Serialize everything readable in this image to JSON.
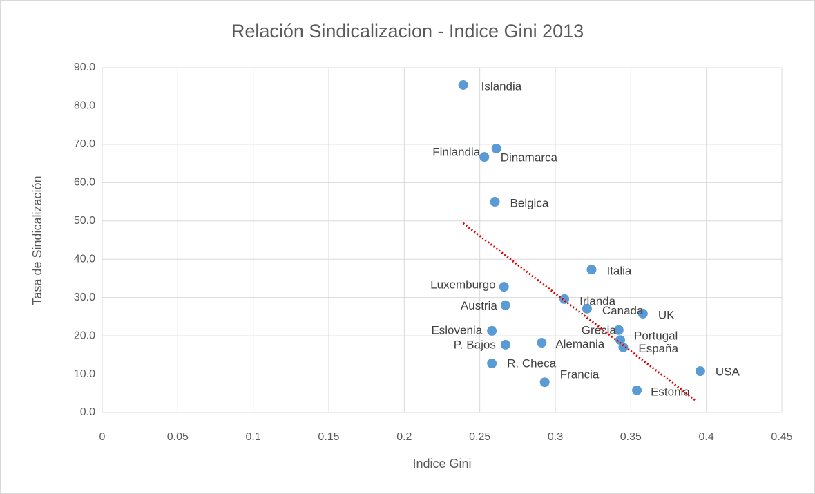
{
  "chart_data": {
    "type": "scatter",
    "title": "Relación Sindicalizacion - Indice Gini 2013",
    "x_label": "Indice Gini",
    "y_label": "Tasa de Sindicalización",
    "xlim": [
      0,
      0.45
    ],
    "xticks": [
      0,
      0.05,
      0.1,
      0.15,
      0.2,
      0.25,
      0.3,
      0.35,
      0.4,
      0.45
    ],
    "ylim": [
      0,
      90
    ],
    "yticks": [
      {
        "value": 0,
        "label": "0.0"
      },
      {
        "value": 10,
        "label": "10.0"
      },
      {
        "value": 20,
        "label": "20.0"
      },
      {
        "value": 30,
        "label": "30.0"
      },
      {
        "value": 40,
        "label": "40.0"
      },
      {
        "value": 50,
        "label": "50.0"
      },
      {
        "value": 60,
        "label": "60.0"
      },
      {
        "value": 70,
        "label": "70.0"
      },
      {
        "value": 80,
        "label": "80.0"
      },
      {
        "value": 90,
        "label": "90.0"
      }
    ],
    "grid": true,
    "series": [
      {
        "color": "#5b9bd5",
        "labels": [
          "Islandia",
          "Finlandia",
          "Dinamarca",
          "Belgica",
          "Italia",
          "Luxemburgo",
          "Austria",
          "Irlanda",
          "Canada",
          "UK",
          "Eslovenia",
          "Grecia",
          "P. Bajos",
          "Alemania",
          "Portugal",
          "España",
          "R. Checa",
          "Francia",
          "Estonia",
          "USA"
        ],
        "x": [
          0.239,
          0.253,
          0.261,
          0.26,
          0.324,
          0.266,
          0.267,
          0.306,
          0.321,
          0.358,
          0.258,
          0.342,
          0.267,
          0.291,
          0.343,
          0.345,
          0.258,
          0.293,
          0.354,
          0.396
        ],
        "values": [
          85.5,
          66.7,
          68.9,
          55.0,
          37.3,
          32.8,
          28.0,
          29.6,
          27.1,
          25.8,
          21.3,
          21.5,
          17.7,
          18.2,
          18.9,
          17.0,
          12.8,
          7.9,
          5.8,
          10.8
        ]
      }
    ],
    "trendline": {
      "color": "#e00000",
      "x": [
        0.239,
        0.393
      ],
      "y": [
        49.4,
        3.1
      ]
    }
  }
}
